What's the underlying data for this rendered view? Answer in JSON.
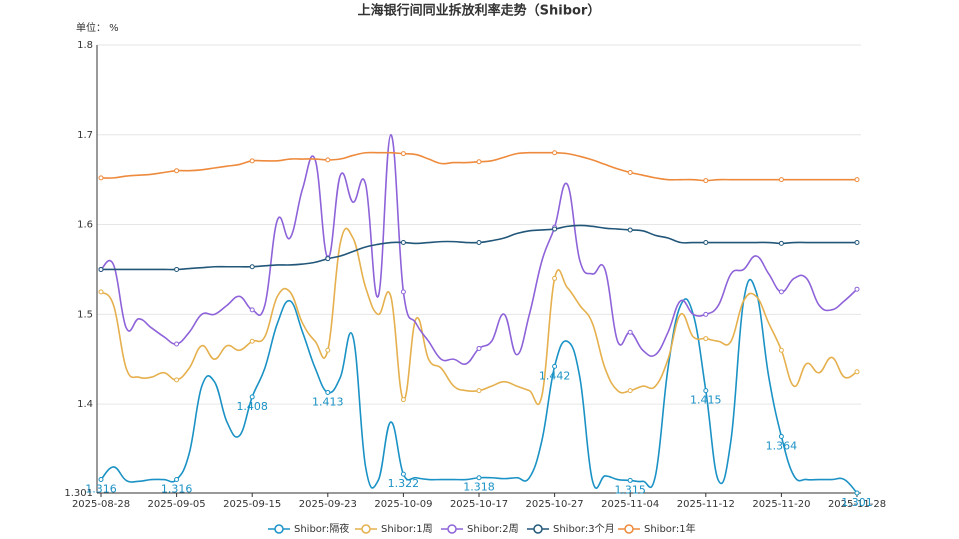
{
  "chart_data": {
    "type": "line",
    "title": "上海银行间同业拆放利率走势（Shibor）",
    "unit_label": "单位：  %",
    "categories": [
      "2025-08-28",
      null,
      null,
      null,
      null,
      null,
      "2025-09-05",
      null,
      null,
      null,
      null,
      null,
      "2025-09-15",
      null,
      null,
      null,
      null,
      null,
      "2025-09-23",
      null,
      null,
      null,
      null,
      null,
      "2025-10-09",
      null,
      null,
      null,
      null,
      null,
      "2025-10-17",
      null,
      null,
      null,
      null,
      null,
      "2025-10-27",
      null,
      null,
      null,
      null,
      null,
      "2025-11-04",
      null,
      null,
      null,
      null,
      null,
      "2025-11-12",
      null,
      null,
      null,
      null,
      null,
      "2025-11-20",
      null,
      null,
      null,
      null,
      null,
      "2025-11-28"
    ],
    "ylim": [
      1.301,
      1.8
    ],
    "yticks": [
      1.301,
      1.4,
      1.5,
      1.6,
      1.7,
      1.8
    ],
    "grid": true,
    "legend": "bottom",
    "series": [
      {
        "name": "Shibor:隔夜",
        "color": "#1b92c5",
        "values": [
          1.316,
          1.33,
          1.315,
          1.314,
          1.316,
          1.316,
          1.316,
          1.345,
          1.42,
          1.425,
          1.38,
          1.365,
          1.408,
          1.44,
          1.49,
          1.515,
          1.48,
          1.44,
          1.413,
          1.43,
          1.475,
          1.33,
          1.315,
          1.38,
          1.322,
          1.318,
          1.316,
          1.316,
          1.316,
          1.316,
          1.318,
          1.318,
          1.317,
          1.318,
          1.318,
          1.36,
          1.442,
          1.47,
          1.43,
          1.315,
          1.32,
          1.316,
          1.315,
          1.314,
          1.32,
          1.44,
          1.51,
          1.5,
          1.415,
          1.315,
          1.36,
          1.515,
          1.525,
          1.43,
          1.364,
          1.32,
          1.316,
          1.316,
          1.316,
          1.316,
          1.301
        ]
      },
      {
        "name": "Shibor:1周",
        "color": "#e5b04d",
        "values": [
          1.525,
          1.51,
          1.44,
          1.43,
          1.43,
          1.435,
          1.427,
          1.44,
          1.465,
          1.45,
          1.465,
          1.46,
          1.47,
          1.475,
          1.52,
          1.525,
          1.49,
          1.47,
          1.46,
          1.58,
          1.585,
          1.53,
          1.5,
          1.52,
          1.405,
          1.495,
          1.45,
          1.44,
          1.42,
          1.415,
          1.415,
          1.42,
          1.425,
          1.42,
          1.415,
          1.41,
          1.54,
          1.53,
          1.51,
          1.49,
          1.44,
          1.415,
          1.415,
          1.42,
          1.42,
          1.45,
          1.5,
          1.475,
          1.473,
          1.47,
          1.47,
          1.515,
          1.52,
          1.49,
          1.46,
          1.42,
          1.445,
          1.435,
          1.452,
          1.43,
          1.436
        ]
      },
      {
        "name": "Shibor:2周",
        "color": "#8e63d9",
        "values": [
          1.55,
          1.555,
          1.485,
          1.495,
          1.485,
          1.475,
          1.467,
          1.48,
          1.5,
          1.5,
          1.51,
          1.52,
          1.505,
          1.51,
          1.605,
          1.585,
          1.64,
          1.672,
          1.563,
          1.655,
          1.625,
          1.645,
          1.52,
          1.7,
          1.525,
          1.49,
          1.47,
          1.45,
          1.45,
          1.445,
          1.462,
          1.47,
          1.5,
          1.455,
          1.5,
          1.56,
          1.597,
          1.645,
          1.56,
          1.545,
          1.55,
          1.47,
          1.48,
          1.46,
          1.455,
          1.48,
          1.515,
          1.5,
          1.5,
          1.51,
          1.545,
          1.55,
          1.565,
          1.545,
          1.525,
          1.54,
          1.54,
          1.51,
          1.505,
          1.515,
          1.528
        ]
      },
      {
        "name": "Shibor:3个月",
        "color": "#22577a",
        "values": [
          1.55,
          1.55,
          1.55,
          1.55,
          1.55,
          1.55,
          1.55,
          1.551,
          1.552,
          1.553,
          1.553,
          1.553,
          1.553,
          1.554,
          1.555,
          1.555,
          1.556,
          1.558,
          1.562,
          1.565,
          1.57,
          1.575,
          1.578,
          1.58,
          1.58,
          1.579,
          1.58,
          1.581,
          1.581,
          1.58,
          1.58,
          1.582,
          1.585,
          1.59,
          1.593,
          1.594,
          1.595,
          1.598,
          1.599,
          1.598,
          1.596,
          1.595,
          1.594,
          1.593,
          1.588,
          1.585,
          1.58,
          1.58,
          1.58,
          1.58,
          1.58,
          1.58,
          1.58,
          1.58,
          1.579,
          1.58,
          1.58,
          1.58,
          1.58,
          1.58,
          1.58
        ]
      },
      {
        "name": "Shibor:1年",
        "color": "#ee8a3c",
        "values": [
          1.652,
          1.652,
          1.654,
          1.655,
          1.656,
          1.658,
          1.66,
          1.66,
          1.661,
          1.663,
          1.665,
          1.667,
          1.671,
          1.671,
          1.671,
          1.673,
          1.673,
          1.673,
          1.672,
          1.673,
          1.677,
          1.68,
          1.68,
          1.68,
          1.679,
          1.678,
          1.673,
          1.668,
          1.669,
          1.669,
          1.67,
          1.671,
          1.675,
          1.679,
          1.68,
          1.68,
          1.68,
          1.679,
          1.676,
          1.672,
          1.667,
          1.662,
          1.658,
          1.655,
          1.652,
          1.65,
          1.65,
          1.65,
          1.649,
          1.65,
          1.65,
          1.65,
          1.65,
          1.65,
          1.65,
          1.65,
          1.65,
          1.65,
          1.65,
          1.65,
          1.65
        ]
      }
    ]
  }
}
